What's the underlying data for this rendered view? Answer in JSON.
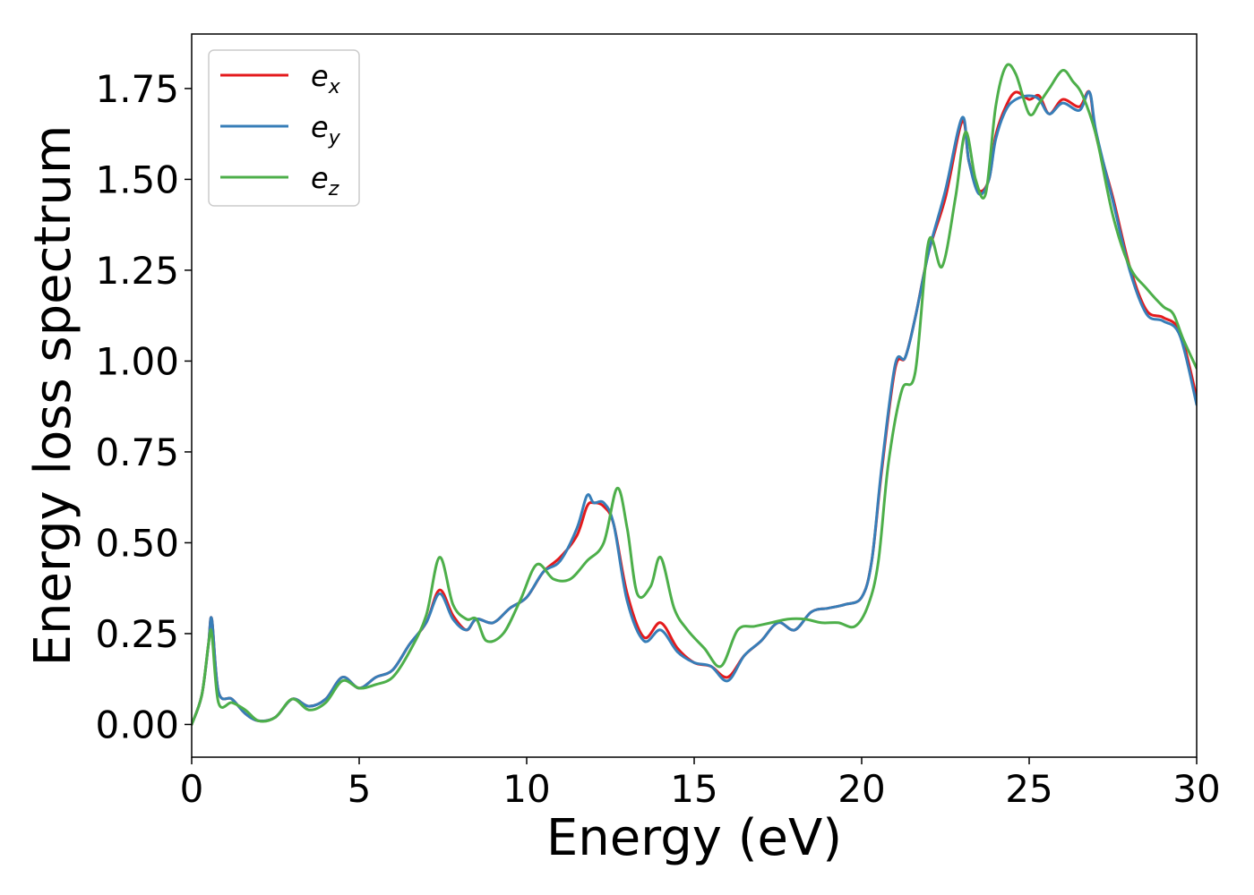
{
  "chart_data": {
    "type": "line",
    "title": "",
    "xlabel": "Energy (eV)",
    "ylabel": "Energy loss spectrum",
    "xlim": [
      0,
      30
    ],
    "ylim": [
      -0.09,
      1.9
    ],
    "xticks": [
      0,
      5,
      10,
      15,
      20,
      25,
      30
    ],
    "xtick_labels": [
      "0",
      "5",
      "10",
      "15",
      "20",
      "25",
      "30"
    ],
    "yticks": [
      0.0,
      0.25,
      0.5,
      0.75,
      1.0,
      1.25,
      1.5,
      1.75
    ],
    "ytick_labels": [
      "0.00",
      "0.25",
      "0.50",
      "0.75",
      "1.00",
      "1.25",
      "1.50",
      "1.75"
    ],
    "grid": false,
    "legend_position": "top-left",
    "series": [
      {
        "name": "e_x",
        "label_base": "e",
        "label_sub": "x",
        "color": "#e41a1c",
        "x": [
          0,
          0.3,
          0.5,
          0.6,
          0.8,
          1.2,
          1.6,
          2.0,
          2.5,
          3.0,
          3.5,
          4.0,
          4.5,
          5.0,
          5.5,
          6.0,
          6.5,
          7.0,
          7.4,
          7.8,
          8.2,
          8.5,
          9.0,
          9.5,
          10.0,
          10.5,
          11.0,
          11.5,
          11.8,
          12.0,
          12.3,
          12.6,
          13.0,
          13.5,
          14.0,
          14.5,
          15.0,
          15.5,
          16.0,
          16.5,
          17.0,
          17.5,
          18.0,
          18.5,
          19.0,
          19.5,
          20.0,
          20.3,
          20.6,
          21.0,
          21.3,
          21.6,
          22.0,
          22.5,
          23.0,
          23.2,
          23.5,
          23.8,
          24.0,
          24.3,
          24.6,
          25.0,
          25.3,
          25.6,
          26.0,
          26.5,
          26.8,
          27.0,
          27.5,
          28.0,
          28.5,
          29.0,
          29.5,
          30.0
        ],
        "y": [
          0.0,
          0.08,
          0.22,
          0.29,
          0.09,
          0.07,
          0.03,
          0.01,
          0.02,
          0.07,
          0.05,
          0.07,
          0.13,
          0.1,
          0.13,
          0.15,
          0.22,
          0.28,
          0.37,
          0.3,
          0.26,
          0.29,
          0.28,
          0.32,
          0.35,
          0.42,
          0.46,
          0.52,
          0.6,
          0.61,
          0.6,
          0.55,
          0.36,
          0.24,
          0.28,
          0.21,
          0.17,
          0.16,
          0.13,
          0.19,
          0.23,
          0.28,
          0.26,
          0.31,
          0.32,
          0.33,
          0.35,
          0.45,
          0.7,
          0.98,
          1.01,
          1.12,
          1.3,
          1.45,
          1.66,
          1.55,
          1.47,
          1.5,
          1.62,
          1.7,
          1.74,
          1.72,
          1.73,
          1.68,
          1.72,
          1.7,
          1.74,
          1.62,
          1.45,
          1.26,
          1.14,
          1.12,
          1.08,
          0.9
        ]
      },
      {
        "name": "e_y",
        "label_base": "e",
        "label_sub": "y",
        "color": "#377eb8",
        "x": [
          0,
          0.3,
          0.5,
          0.6,
          0.8,
          1.2,
          1.6,
          2.0,
          2.5,
          3.0,
          3.5,
          4.0,
          4.5,
          5.0,
          5.5,
          6.0,
          6.5,
          7.0,
          7.4,
          7.8,
          8.2,
          8.5,
          9.0,
          9.5,
          10.0,
          10.5,
          11.0,
          11.5,
          11.8,
          12.0,
          12.3,
          12.6,
          13.0,
          13.5,
          14.0,
          14.5,
          15.0,
          15.5,
          16.0,
          16.5,
          17.0,
          17.5,
          18.0,
          18.5,
          19.0,
          19.5,
          20.0,
          20.3,
          20.6,
          21.0,
          21.3,
          21.6,
          22.0,
          22.5,
          23.0,
          23.2,
          23.5,
          23.8,
          24.0,
          24.3,
          24.6,
          25.0,
          25.3,
          25.6,
          26.0,
          26.5,
          26.8,
          27.0,
          27.5,
          28.0,
          28.5,
          29.0,
          29.5,
          30.0
        ],
        "y": [
          0.0,
          0.08,
          0.22,
          0.29,
          0.09,
          0.07,
          0.03,
          0.01,
          0.02,
          0.07,
          0.05,
          0.07,
          0.13,
          0.1,
          0.13,
          0.15,
          0.22,
          0.28,
          0.36,
          0.29,
          0.26,
          0.29,
          0.28,
          0.32,
          0.35,
          0.42,
          0.45,
          0.54,
          0.63,
          0.61,
          0.61,
          0.55,
          0.34,
          0.23,
          0.26,
          0.2,
          0.17,
          0.16,
          0.12,
          0.19,
          0.23,
          0.28,
          0.26,
          0.31,
          0.32,
          0.33,
          0.35,
          0.45,
          0.71,
          0.99,
          1.01,
          1.12,
          1.3,
          1.47,
          1.67,
          1.55,
          1.46,
          1.5,
          1.61,
          1.69,
          1.72,
          1.73,
          1.72,
          1.68,
          1.71,
          1.69,
          1.74,
          1.63,
          1.44,
          1.25,
          1.13,
          1.11,
          1.07,
          0.88
        ]
      },
      {
        "name": "e_z",
        "label_base": "e",
        "label_sub": "z",
        "color": "#4daf4a",
        "x": [
          0,
          0.3,
          0.5,
          0.6,
          0.8,
          1.2,
          1.6,
          2.0,
          2.5,
          3.0,
          3.5,
          4.0,
          4.5,
          5.0,
          5.5,
          6.0,
          6.5,
          7.0,
          7.4,
          7.8,
          8.2,
          8.5,
          8.8,
          9.3,
          9.8,
          10.3,
          10.8,
          11.3,
          11.8,
          12.3,
          12.7,
          13.0,
          13.3,
          13.7,
          14.0,
          14.4,
          14.8,
          15.3,
          15.8,
          16.3,
          16.8,
          17.3,
          17.8,
          18.3,
          18.8,
          19.3,
          19.8,
          20.2,
          20.5,
          20.8,
          21.2,
          21.6,
          22.0,
          22.4,
          22.8,
          23.1,
          23.4,
          23.7,
          24.0,
          24.3,
          24.6,
          25.0,
          25.3,
          25.6,
          26.0,
          26.3,
          26.6,
          27.0,
          27.5,
          28.0,
          28.5,
          29.0,
          29.3,
          29.6,
          30.0
        ],
        "y": [
          0.0,
          0.08,
          0.22,
          0.25,
          0.06,
          0.06,
          0.04,
          0.01,
          0.02,
          0.07,
          0.04,
          0.06,
          0.12,
          0.1,
          0.11,
          0.13,
          0.2,
          0.3,
          0.46,
          0.33,
          0.29,
          0.29,
          0.23,
          0.25,
          0.34,
          0.44,
          0.4,
          0.4,
          0.45,
          0.5,
          0.65,
          0.54,
          0.36,
          0.38,
          0.46,
          0.32,
          0.26,
          0.21,
          0.16,
          0.26,
          0.27,
          0.28,
          0.29,
          0.29,
          0.28,
          0.28,
          0.27,
          0.33,
          0.45,
          0.72,
          0.92,
          0.97,
          1.33,
          1.26,
          1.45,
          1.63,
          1.5,
          1.46,
          1.7,
          1.81,
          1.79,
          1.68,
          1.71,
          1.75,
          1.8,
          1.77,
          1.73,
          1.62,
          1.4,
          1.26,
          1.2,
          1.15,
          1.13,
          1.06,
          0.98
        ]
      }
    ]
  }
}
